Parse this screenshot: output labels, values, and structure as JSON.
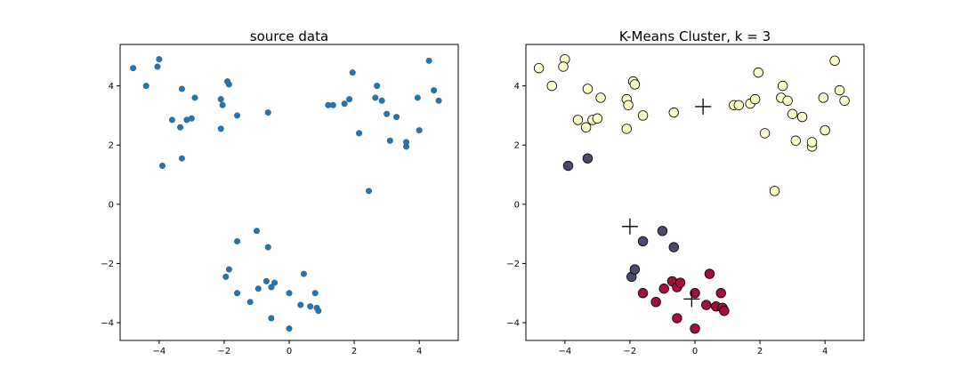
{
  "chart_data": [
    {
      "type": "scatter",
      "title": "source data",
      "xlabel": "",
      "ylabel": "",
      "xlim": [
        -5.2,
        5.2
      ],
      "ylim": [
        -4.6,
        5.4
      ],
      "x_ticks": [
        "−4",
        "−2",
        "0",
        "2",
        "4"
      ],
      "y_ticks": [
        "−4",
        "−2",
        "0",
        "2",
        "4"
      ],
      "grid": false,
      "marker_color": "#1f77b4",
      "points": [
        [
          -4.8,
          4.6
        ],
        [
          -4.4,
          4.0
        ],
        [
          -4.0,
          4.9
        ],
        [
          -4.05,
          4.65
        ],
        [
          -3.9,
          1.3
        ],
        [
          -3.6,
          2.85
        ],
        [
          -3.3,
          3.9
        ],
        [
          -3.35,
          2.6
        ],
        [
          -3.3,
          1.55
        ],
        [
          -3.15,
          2.85
        ],
        [
          -3.0,
          2.9
        ],
        [
          -2.9,
          3.6
        ],
        [
          -2.1,
          3.55
        ],
        [
          -2.05,
          3.35
        ],
        [
          -2.1,
          2.55
        ],
        [
          -1.9,
          4.15
        ],
        [
          -1.85,
          4.05
        ],
        [
          -1.6,
          3.0
        ],
        [
          -0.65,
          3.1
        ],
        [
          1.2,
          3.35
        ],
        [
          1.35,
          3.35
        ],
        [
          1.7,
          3.4
        ],
        [
          1.85,
          3.55
        ],
        [
          1.95,
          4.45
        ],
        [
          2.15,
          2.4
        ],
        [
          2.45,
          0.45
        ],
        [
          2.65,
          3.6
        ],
        [
          2.7,
          4.0
        ],
        [
          2.85,
          3.5
        ],
        [
          3.0,
          3.05
        ],
        [
          3.1,
          2.15
        ],
        [
          3.3,
          2.95
        ],
        [
          3.6,
          1.95
        ],
        [
          3.6,
          2.1
        ],
        [
          3.95,
          3.6
        ],
        [
          4.0,
          2.5
        ],
        [
          4.3,
          4.85
        ],
        [
          4.45,
          3.85
        ],
        [
          4.6,
          3.5
        ],
        [
          -1.95,
          -2.45
        ],
        [
          -1.85,
          -2.2
        ],
        [
          -1.6,
          -1.25
        ],
        [
          -1.6,
          -3.0
        ],
        [
          -1.2,
          -3.3
        ],
        [
          -1.0,
          -0.9
        ],
        [
          -0.95,
          -2.85
        ],
        [
          -0.7,
          -2.6
        ],
        [
          -0.65,
          -1.45
        ],
        [
          -0.55,
          -3.85
        ],
        [
          -0.55,
          -2.8
        ],
        [
          -0.45,
          -2.65
        ],
        [
          0.0,
          -4.2
        ],
        [
          0.0,
          -3.0
        ],
        [
          0.35,
          -3.4
        ],
        [
          0.45,
          -2.35
        ],
        [
          0.65,
          -3.45
        ],
        [
          0.8,
          -3.0
        ],
        [
          0.85,
          -3.5
        ],
        [
          0.9,
          -3.6
        ]
      ]
    },
    {
      "type": "scatter",
      "title": "K-Means Cluster, k = 3",
      "xlabel": "",
      "ylabel": "",
      "xlim": [
        -5.2,
        5.2
      ],
      "ylim": [
        -4.6,
        5.4
      ],
      "x_ticks": [
        "−4",
        "−2",
        "0",
        "2",
        "4"
      ],
      "y_ticks": [
        "−4",
        "−2",
        "0",
        "2",
        "4"
      ],
      "grid": false,
      "cluster_colors": [
        "#ffffcc",
        "#4a4a6e",
        "#a50f3b"
      ],
      "edge_color": "#000000",
      "points": [
        [
          -4.8,
          4.6,
          0
        ],
        [
          -4.4,
          4.0,
          0
        ],
        [
          -4.0,
          4.9,
          0
        ],
        [
          -4.05,
          4.65,
          0
        ],
        [
          -3.6,
          2.85,
          0
        ],
        [
          -3.3,
          3.9,
          0
        ],
        [
          -3.35,
          2.6,
          0
        ],
        [
          -3.15,
          2.85,
          0
        ],
        [
          -3.0,
          2.9,
          0
        ],
        [
          -2.9,
          3.6,
          0
        ],
        [
          -2.1,
          3.55,
          0
        ],
        [
          -2.05,
          3.35,
          0
        ],
        [
          -2.1,
          2.55,
          0
        ],
        [
          -1.9,
          4.15,
          0
        ],
        [
          -1.85,
          4.05,
          0
        ],
        [
          -1.6,
          3.0,
          0
        ],
        [
          -0.65,
          3.1,
          0
        ],
        [
          1.2,
          3.35,
          0
        ],
        [
          1.35,
          3.35,
          0
        ],
        [
          1.7,
          3.4,
          0
        ],
        [
          1.85,
          3.55,
          0
        ],
        [
          1.95,
          4.45,
          0
        ],
        [
          2.15,
          2.4,
          0
        ],
        [
          2.45,
          0.45,
          0
        ],
        [
          2.65,
          3.6,
          0
        ],
        [
          2.7,
          4.0,
          0
        ],
        [
          2.85,
          3.5,
          0
        ],
        [
          3.0,
          3.05,
          0
        ],
        [
          3.1,
          2.15,
          0
        ],
        [
          3.3,
          2.95,
          0
        ],
        [
          3.6,
          1.95,
          0
        ],
        [
          3.6,
          2.1,
          0
        ],
        [
          3.95,
          3.6,
          0
        ],
        [
          4.0,
          2.5,
          0
        ],
        [
          4.3,
          4.85,
          0
        ],
        [
          4.45,
          3.85,
          0
        ],
        [
          4.6,
          3.5,
          0
        ],
        [
          -3.9,
          1.3,
          1
        ],
        [
          -3.3,
          1.55,
          1
        ],
        [
          -1.95,
          -2.45,
          1
        ],
        [
          -1.85,
          -2.2,
          1
        ],
        [
          -1.6,
          -1.25,
          1
        ],
        [
          -1.0,
          -0.9,
          1
        ],
        [
          -0.65,
          -1.45,
          1
        ],
        [
          -1.6,
          -3.0,
          2
        ],
        [
          -1.2,
          -3.3,
          2
        ],
        [
          -0.95,
          -2.85,
          2
        ],
        [
          -0.7,
          -2.6,
          2
        ],
        [
          -0.55,
          -3.85,
          2
        ],
        [
          -0.55,
          -2.8,
          2
        ],
        [
          -0.45,
          -2.65,
          2
        ],
        [
          0.0,
          -4.2,
          2
        ],
        [
          0.0,
          -3.0,
          2
        ],
        [
          0.35,
          -3.4,
          2
        ],
        [
          0.45,
          -2.35,
          2
        ],
        [
          0.65,
          -3.45,
          2
        ],
        [
          0.8,
          -3.0,
          2
        ],
        [
          0.85,
          -3.5,
          2
        ],
        [
          0.9,
          -3.6,
          2
        ]
      ],
      "centroids": [
        [
          0.25,
          3.3
        ],
        [
          -2.0,
          -0.75
        ],
        [
          -0.1,
          -3.2
        ]
      ]
    }
  ]
}
